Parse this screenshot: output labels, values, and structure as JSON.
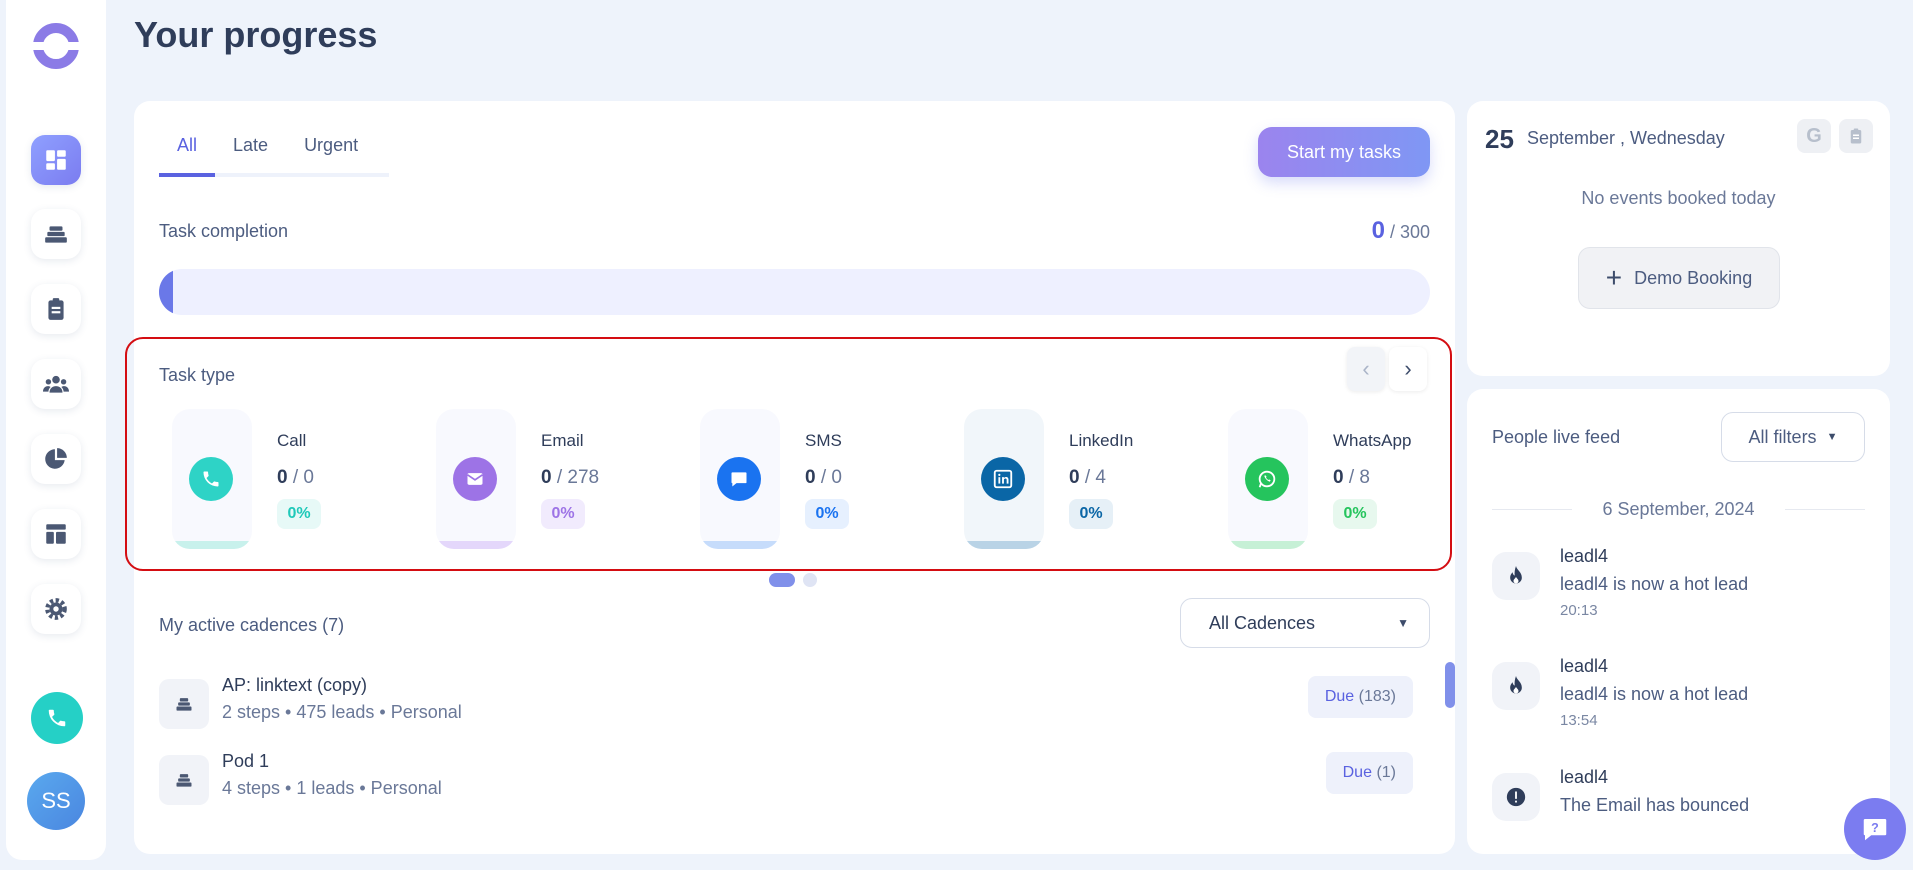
{
  "page": {
    "title": "Your progress"
  },
  "sidebar": {
    "items": [
      {
        "name": "dashboard",
        "icon": "dashboard-icon",
        "active": true
      },
      {
        "name": "cadences",
        "icon": "layers-icon"
      },
      {
        "name": "tasks",
        "icon": "clipboard-icon"
      },
      {
        "name": "people",
        "icon": "people-icon"
      },
      {
        "name": "reports",
        "icon": "pie-chart-icon"
      },
      {
        "name": "templates",
        "icon": "layout-icon"
      },
      {
        "name": "settings",
        "icon": "gear-icon"
      }
    ],
    "avatar_initials": "SS"
  },
  "tasks": {
    "tabs": [
      "All",
      "Late",
      "Urgent"
    ],
    "start_button": "Start my tasks",
    "completion_label": "Task completion",
    "completed": "0",
    "total": "/ 300",
    "progress_fraction": 0
  },
  "task_type": {
    "label": "Task type",
    "types": [
      {
        "name": "Call",
        "done": "0",
        "total": "/ 0",
        "percent": "0%",
        "color": "#2ed3c6",
        "icon": "phone-icon"
      },
      {
        "name": "Email",
        "done": "0",
        "total": "/ 278",
        "percent": "0%",
        "color": "#9d73e6",
        "icon": "email-icon"
      },
      {
        "name": "SMS",
        "done": "0",
        "total": "/ 0",
        "percent": "0%",
        "color": "#1a73f0",
        "icon": "chat-icon"
      },
      {
        "name": "LinkedIn",
        "done": "0",
        "total": "/ 4",
        "percent": "0%",
        "color": "#0a66a6",
        "icon": "linkedin-icon"
      },
      {
        "name": "WhatsApp",
        "done": "0",
        "total": "/ 8",
        "percent": "0%",
        "color": "#25c45d",
        "icon": "whatsapp-icon"
      }
    ]
  },
  "cadences": {
    "label": "My active cadences (7)",
    "filter": "All Cadences",
    "rows": [
      {
        "title": "AP: linktext (copy)",
        "subtitle": "2 steps • 475 leads • Personal",
        "due_label": "Due",
        "due_count": "(183)"
      },
      {
        "title": "Pod 1",
        "subtitle": "4 steps • 1 leads • Personal",
        "due_label": "Due",
        "due_count": "(1)"
      }
    ]
  },
  "calendar": {
    "day": "25",
    "date": "September , Wednesday",
    "google_icon": "G",
    "empty_text": "No events booked today",
    "demo_button": "Demo Booking"
  },
  "feed": {
    "title": "People live feed",
    "filter": "All filters",
    "date": "6 September, 2024",
    "items": [
      {
        "name": "leadl4",
        "message": "leadl4 is now a hot lead",
        "time": "20:13",
        "icon": "fire-icon"
      },
      {
        "name": "leadl4",
        "message": "leadl4 is now a hot lead",
        "time": "13:54",
        "icon": "fire-icon"
      },
      {
        "name": "leadl4",
        "message": "The Email has bounced",
        "time": "",
        "icon": "alert-icon"
      }
    ]
  }
}
